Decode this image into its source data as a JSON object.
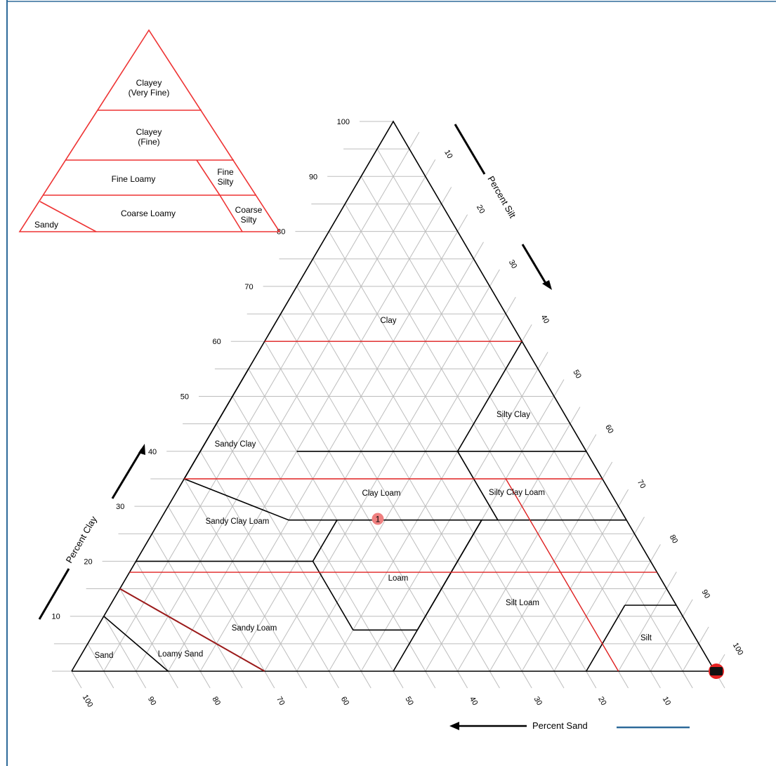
{
  "colors": {
    "boundary": "#000000",
    "family_line": "#e02020",
    "sand_line": "#9b1a1a",
    "grid": "#bdbdbd",
    "marker": "#f08080",
    "legend_line": "#2e6a9a",
    "frame": "#2e6a9a"
  },
  "axes": {
    "clay": {
      "label": "Percent Clay",
      "ticks": [
        "10",
        "20",
        "30",
        "40",
        "50",
        "60",
        "70",
        "80",
        "90",
        "100"
      ]
    },
    "silt": {
      "label": "Percent Silt",
      "ticks": [
        "10",
        "20",
        "30",
        "40",
        "50",
        "60",
        "70",
        "80",
        "90",
        "100"
      ]
    },
    "sand": {
      "label": "Percent Sand",
      "ticks": [
        "100",
        "90",
        "80",
        "70",
        "60",
        "50",
        "40",
        "30",
        "20",
        "10"
      ]
    }
  },
  "texture_classes": [
    "Clay",
    "Silty Clay",
    "Sandy Clay",
    "Clay Loam",
    "Silty Clay Loam",
    "Sandy Clay Loam",
    "Loam",
    "Silt Loam",
    "Sandy Loam",
    "Silt",
    "Sand",
    "Loamy Sand"
  ],
  "inset": {
    "classes": [
      [
        "Clayey",
        "(Very Fine)"
      ],
      [
        "Clayey",
        "(Fine)"
      ],
      [
        "Fine Loamy"
      ],
      [
        "Fine",
        "Silty"
      ],
      [
        "Coarse Loamy"
      ],
      [
        "Coarse",
        "Silty"
      ],
      [
        "Sandy"
      ]
    ]
  },
  "sample_point": {
    "label": "1",
    "clay": 28,
    "sand": 40,
    "silt": 32
  }
}
